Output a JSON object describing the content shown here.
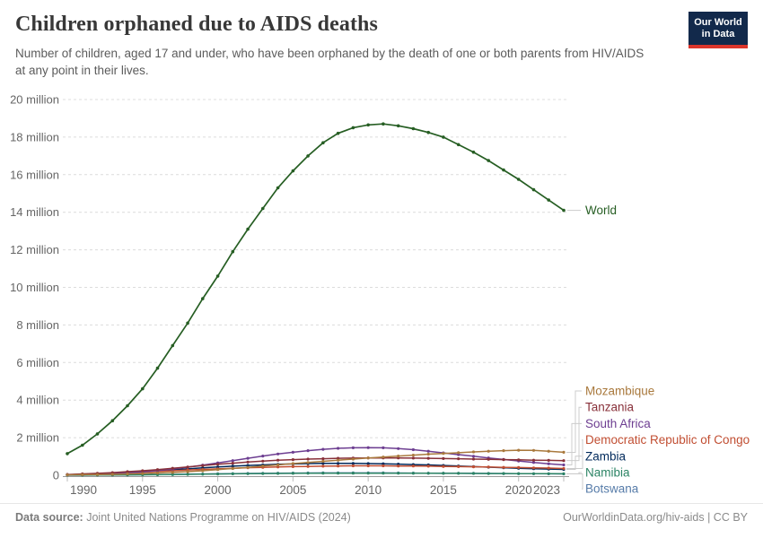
{
  "header": {
    "title": "Children orphaned due to AIDS deaths",
    "subtitle": "Number of children, aged 17 and under, who have been orphaned by the death of one or both parents from HIV/AIDS at any point in their lives.",
    "logo": {
      "line1": "Our World",
      "line2": "in Data",
      "bg_color": "#12294B",
      "accent_color": "#DC352B"
    }
  },
  "footer": {
    "source_label": "Data source:",
    "source_text": "Joint United Nations Programme on HIV/AIDS (2024)",
    "credit": "OurWorldinData.org/hiv-aids | CC BY"
  },
  "chart_data": {
    "type": "line",
    "title": "Children orphaned due to AIDS deaths",
    "xlabel": "",
    "ylabel": "",
    "unit": "million children",
    "grid": true,
    "legend_position": "right-of-line-ends",
    "ylim": [
      0,
      20
    ],
    "x": [
      1990,
      1991,
      1992,
      1993,
      1994,
      1995,
      1996,
      1997,
      1998,
      1999,
      2000,
      2001,
      2002,
      2003,
      2004,
      2005,
      2006,
      2007,
      2008,
      2009,
      2010,
      2011,
      2012,
      2013,
      2014,
      2015,
      2016,
      2017,
      2018,
      2019,
      2020,
      2021,
      2022,
      2023
    ],
    "x_tick_labels": [
      "1990",
      "1995",
      "2000",
      "2005",
      "2010",
      "2015",
      "2020",
      "2023"
    ],
    "y_ticks": [
      {
        "value": 0,
        "label": "0"
      },
      {
        "value": 2,
        "label": "2 million"
      },
      {
        "value": 4,
        "label": "4 million"
      },
      {
        "value": 6,
        "label": "6 million"
      },
      {
        "value": 8,
        "label": "8 million"
      },
      {
        "value": 10,
        "label": "10 million"
      },
      {
        "value": 12,
        "label": "12 million"
      },
      {
        "value": 14,
        "label": "14 million"
      },
      {
        "value": 16,
        "label": "16 million"
      },
      {
        "value": 18,
        "label": "18 million"
      },
      {
        "value": 20,
        "label": "20 million"
      }
    ],
    "series": [
      {
        "name": "World",
        "color": "#265E23",
        "values_millions": [
          1.15,
          1.6,
          2.2,
          2.9,
          3.7,
          4.6,
          5.7,
          6.9,
          8.1,
          9.4,
          10.6,
          11.9,
          13.1,
          14.2,
          15.3,
          16.2,
          17.0,
          17.7,
          18.2,
          18.5,
          18.65,
          18.7,
          18.6,
          18.45,
          18.25,
          18.0,
          17.6,
          17.2,
          16.75,
          16.25,
          15.75,
          15.2,
          14.65,
          14.1
        ]
      },
      {
        "name": "Mozambique",
        "color": "#A9793D",
        "values_millions": [
          0.02,
          0.03,
          0.04,
          0.05,
          0.07,
          0.09,
          0.12,
          0.15,
          0.19,
          0.24,
          0.3,
          0.36,
          0.42,
          0.49,
          0.55,
          0.62,
          0.68,
          0.74,
          0.8,
          0.86,
          0.92,
          0.97,
          1.02,
          1.07,
          1.12,
          1.16,
          1.2,
          1.24,
          1.28,
          1.31,
          1.33,
          1.32,
          1.28,
          1.22
        ]
      },
      {
        "name": "Tanzania",
        "color": "#883039",
        "values_millions": [
          0.04,
          0.07,
          0.1,
          0.14,
          0.19,
          0.24,
          0.3,
          0.37,
          0.44,
          0.51,
          0.58,
          0.64,
          0.7,
          0.75,
          0.8,
          0.83,
          0.86,
          0.88,
          0.9,
          0.91,
          0.92,
          0.92,
          0.92,
          0.91,
          0.9,
          0.89,
          0.88,
          0.86,
          0.85,
          0.83,
          0.82,
          0.8,
          0.79,
          0.78
        ]
      },
      {
        "name": "South Africa",
        "color": "#6D3E91",
        "values_millions": [
          0.03,
          0.04,
          0.06,
          0.09,
          0.13,
          0.18,
          0.25,
          0.33,
          0.43,
          0.54,
          0.66,
          0.78,
          0.9,
          1.02,
          1.13,
          1.22,
          1.31,
          1.38,
          1.43,
          1.46,
          1.47,
          1.46,
          1.42,
          1.36,
          1.28,
          1.19,
          1.1,
          1.01,
          0.92,
          0.84,
          0.76,
          0.68,
          0.61,
          0.55
        ]
      },
      {
        "name": "Democratic Republic of Congo",
        "color": "#C14E32",
        "values_millions": [
          0.03,
          0.05,
          0.07,
          0.1,
          0.13,
          0.16,
          0.2,
          0.24,
          0.28,
          0.31,
          0.34,
          0.37,
          0.4,
          0.42,
          0.44,
          0.46,
          0.47,
          0.48,
          0.49,
          0.5,
          0.5,
          0.5,
          0.49,
          0.49,
          0.48,
          0.47,
          0.46,
          0.45,
          0.44,
          0.42,
          0.41,
          0.39,
          0.38,
          0.36
        ]
      },
      {
        "name": "Zambia",
        "color": "#00295B",
        "values_millions": [
          0.03,
          0.05,
          0.08,
          0.11,
          0.15,
          0.19,
          0.24,
          0.29,
          0.34,
          0.39,
          0.44,
          0.48,
          0.52,
          0.55,
          0.58,
          0.6,
          0.62,
          0.63,
          0.63,
          0.63,
          0.62,
          0.61,
          0.59,
          0.57,
          0.55,
          0.52,
          0.49,
          0.46,
          0.43,
          0.4,
          0.37,
          0.35,
          0.33,
          0.31
        ]
      },
      {
        "name": "Namibia",
        "color": "#2C8465",
        "values_millions": [
          0.004,
          0.006,
          0.009,
          0.013,
          0.018,
          0.024,
          0.031,
          0.039,
          0.048,
          0.057,
          0.066,
          0.075,
          0.083,
          0.09,
          0.096,
          0.101,
          0.105,
          0.108,
          0.11,
          0.111,
          0.111,
          0.11,
          0.108,
          0.106,
          0.104,
          0.101,
          0.098,
          0.095,
          0.092,
          0.089,
          0.086,
          0.083,
          0.08,
          0.078
        ]
      },
      {
        "name": "Botswana",
        "color": "#577CA9",
        "values_millions": [
          0.004,
          0.007,
          0.01,
          0.015,
          0.021,
          0.028,
          0.036,
          0.045,
          0.055,
          0.065,
          0.075,
          0.085,
          0.094,
          0.102,
          0.109,
          0.115,
          0.119,
          0.122,
          0.124,
          0.125,
          0.124,
          0.122,
          0.119,
          0.116,
          0.112,
          0.108,
          0.104,
          0.099,
          0.094,
          0.089,
          0.084,
          0.079,
          0.074,
          0.07
        ]
      }
    ]
  }
}
